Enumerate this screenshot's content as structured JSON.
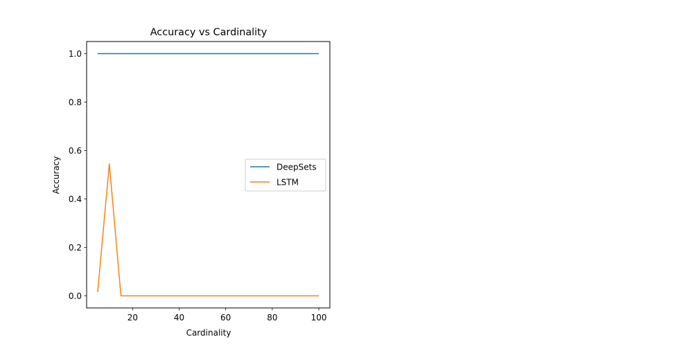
{
  "chart_data": {
    "type": "line",
    "title": "Accuracy vs Cardinality",
    "xlabel": "Cardinality",
    "ylabel": "Accuracy",
    "xlim": [
      0.25,
      104.75
    ],
    "ylim": [
      -0.05,
      1.05
    ],
    "x_ticks": [
      20,
      40,
      60,
      80,
      100
    ],
    "y_ticks": [
      0.0,
      0.2,
      0.4,
      0.6,
      0.8,
      1.0
    ],
    "grid": false,
    "legend_position": "center-right",
    "series": [
      {
        "name": "DeepSets",
        "color": "#1f77b4",
        "x": [
          5,
          10,
          15,
          20,
          25,
          30,
          35,
          40,
          45,
          50,
          55,
          60,
          65,
          70,
          75,
          80,
          85,
          90,
          95,
          100
        ],
        "y": [
          1.0,
          1.0,
          1.0,
          1.0,
          1.0,
          1.0,
          1.0,
          1.0,
          1.0,
          1.0,
          1.0,
          1.0,
          1.0,
          1.0,
          1.0,
          1.0,
          1.0,
          1.0,
          1.0,
          1.0
        ]
      },
      {
        "name": "LSTM",
        "color": "#ff7f0e",
        "x": [
          5,
          10,
          15,
          20,
          25,
          30,
          35,
          40,
          45,
          50,
          55,
          60,
          65,
          70,
          75,
          80,
          85,
          90,
          95,
          100
        ],
        "y": [
          0.015,
          0.545,
          0.0,
          0.0,
          0.0,
          0.0,
          0.0,
          0.0,
          0.0,
          0.0,
          0.0,
          0.0,
          0.0,
          0.0,
          0.0,
          0.0,
          0.0,
          0.0,
          0.0,
          0.0
        ]
      }
    ]
  }
}
